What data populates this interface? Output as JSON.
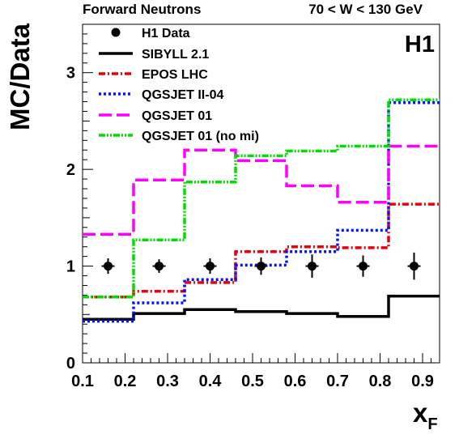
{
  "chart_data": {
    "type": "line",
    "header_left": "Forward Neutrons",
    "header_right": "70 < W < 130 GeV",
    "badge": "H1",
    "ylabel": "MC/Data",
    "xlabel_main": "x",
    "xlabel_sub": "F",
    "xlim": [
      0.1,
      0.94
    ],
    "ylim": [
      0,
      3.5
    ],
    "xticks": [
      "0.1",
      "0.2",
      "0.3",
      "0.4",
      "0.5",
      "0.6",
      "0.7",
      "0.8",
      "0.9"
    ],
    "yticks": [
      "0",
      "1",
      "2",
      "3"
    ],
    "bin_edges": [
      0.1,
      0.22,
      0.34,
      0.46,
      0.58,
      0.7,
      0.82,
      0.94
    ],
    "data": {
      "name": "H1 Data",
      "x": [
        0.16,
        0.28,
        0.4,
        0.52,
        0.64,
        0.76,
        0.88
      ],
      "y": [
        1.0,
        1.0,
        1.0,
        1.0,
        1.0,
        1.0,
        1.0
      ],
      "err": [
        0.08,
        0.07,
        0.08,
        0.09,
        0.12,
        0.11,
        0.14
      ]
    },
    "series": [
      {
        "name": "SIBYLL 2.1",
        "color": "#000000",
        "dash": "solid",
        "values": [
          0.45,
          0.51,
          0.55,
          0.53,
          0.51,
          0.48,
          0.69
        ]
      },
      {
        "name": "EPOS LHC",
        "color": "#e8000b",
        "dash": "dashdot",
        "values": [
          0.68,
          0.74,
          0.83,
          1.15,
          1.2,
          1.19,
          1.64
        ]
      },
      {
        "name": "QGSJET II-04",
        "color": "#0015ff",
        "dash": "dotted",
        "values": [
          0.43,
          0.62,
          0.86,
          1.01,
          1.15,
          1.37,
          2.69
        ]
      },
      {
        "name": "QGSJET 01",
        "color": "#ff00ff",
        "dash": "longdash",
        "values": [
          1.33,
          1.89,
          2.2,
          2.09,
          1.83,
          1.66,
          2.24
        ]
      },
      {
        "name": "QGSJET 01 (no mi)",
        "color": "#00dd00",
        "dash": "dashdotdot",
        "values": [
          0.68,
          1.27,
          1.87,
          2.14,
          2.19,
          2.24,
          2.72
        ]
      }
    ]
  }
}
